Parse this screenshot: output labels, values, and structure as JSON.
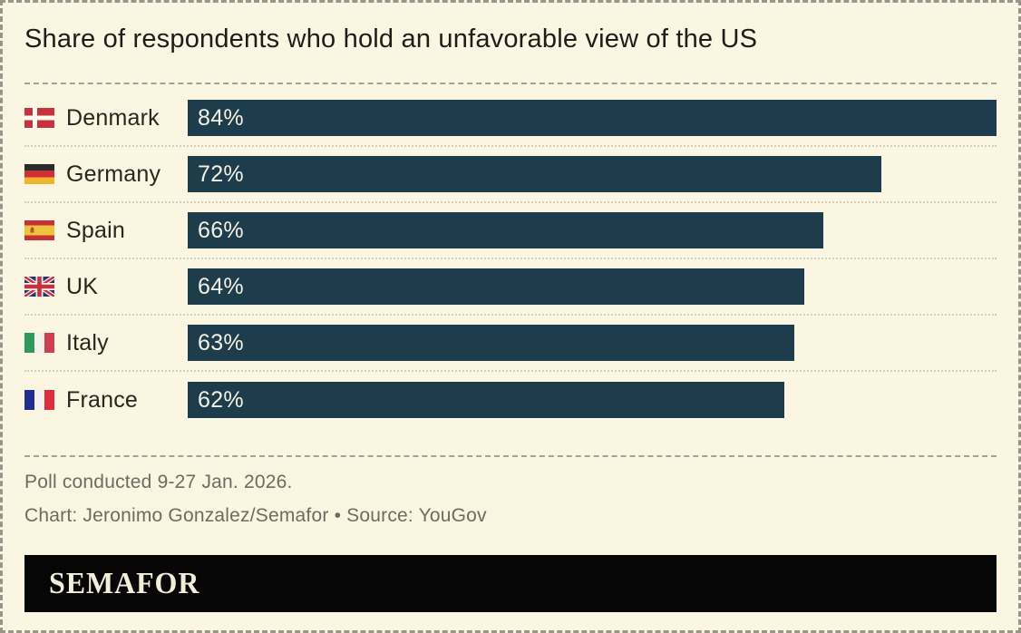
{
  "title": "Share of respondents who hold an unfavorable view of the US",
  "chart_data": {
    "type": "bar",
    "orientation": "horizontal",
    "title": "Share of respondents who hold an unfavorable view of the US",
    "categories": [
      "Denmark",
      "Germany",
      "Spain",
      "UK",
      "Italy",
      "France"
    ],
    "values": [
      84,
      72,
      66,
      64,
      63,
      62
    ],
    "value_labels": [
      "84%",
      "72%",
      "66%",
      "64%",
      "63%",
      "62%"
    ],
    "unit": "%",
    "scale_max": 84,
    "grid": false,
    "legend": "none",
    "bar_color": "#1d3c4c",
    "flag_icons": [
      "denmark-flag-icon",
      "germany-flag-icon",
      "spain-flag-icon",
      "uk-flag-icon",
      "italy-flag-icon",
      "france-flag-icon"
    ],
    "flag_keys": [
      "denmark",
      "germany",
      "spain",
      "uk",
      "italy",
      "france"
    ]
  },
  "footer": {
    "note": "Poll conducted 9-27 Jan. 2026.",
    "credit": "Chart: Jeronimo Gonzalez/Semafor • Source: YouGov"
  },
  "logo": {
    "text": "SEMAFOR"
  },
  "colors": {
    "background": "#faf6e1",
    "bar": "#1d3c4c",
    "bar_label": "#f4f1e2",
    "title_text": "#1e1d1a",
    "footer_text": "#6d6c62",
    "separator_dashed": "#a3a095",
    "separator_dotted": "#d2ceb9",
    "logo_background": "#060606",
    "logo_text": "#f2eeda"
  }
}
